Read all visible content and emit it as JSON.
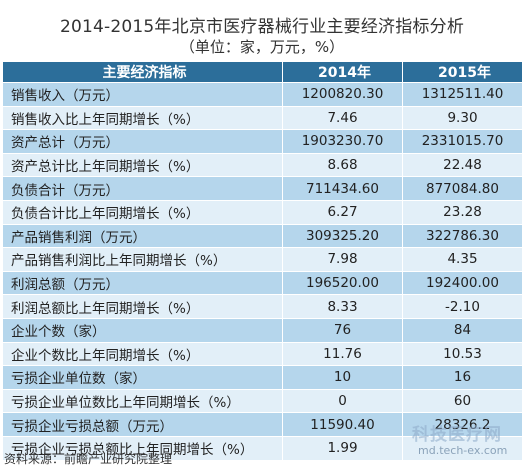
{
  "chart_data": {
    "type": "table",
    "title": "2014-2015年北京市医疗器械行业主要经济指标分析",
    "subtitle": "（单位：家，万元，%）",
    "columns": [
      "主要经济指标",
      "2014年",
      "2015年"
    ],
    "rows": [
      {
        "label": "销售收入（万元）",
        "y2014": "1200820.30",
        "y2015": "1312511.40"
      },
      {
        "label": "销售收入比上年同期增长（%）",
        "y2014": "7.46",
        "y2015": "9.30"
      },
      {
        "label": "资产总计（万元）",
        "y2014": "1903230.70",
        "y2015": "2331015.70"
      },
      {
        "label": "资产总计比上年同期增长（%）",
        "y2014": "8.68",
        "y2015": "22.48"
      },
      {
        "label": "负债合计（万元）",
        "y2014": "711434.60",
        "y2015": "877084.80"
      },
      {
        "label": "负债合计比上年同期增长（%）",
        "y2014": "6.27",
        "y2015": "23.28"
      },
      {
        "label": "产品销售利润（万元）",
        "y2014": "309325.20",
        "y2015": "322786.30"
      },
      {
        "label": "产品销售利润比上年同期增长（%）",
        "y2014": "7.98",
        "y2015": "4.35"
      },
      {
        "label": "利润总额（万元）",
        "y2014": "196520.00",
        "y2015": "192400.00"
      },
      {
        "label": "利润总额比上年同期增长（%）",
        "y2014": "8.33",
        "y2015": "-2.10"
      },
      {
        "label": "企业个数（家）",
        "y2014": "76",
        "y2015": "84"
      },
      {
        "label": "企业个数比上年同期增长（%）",
        "y2014": "11.76",
        "y2015": "10.53"
      },
      {
        "label": "亏损企业单位数（家）",
        "y2014": "10",
        "y2015": "16"
      },
      {
        "label": "亏损企业单位数比上年同期增长（%）",
        "y2014": "0",
        "y2015": "60"
      },
      {
        "label": "亏损企业亏损总额（万元）",
        "y2014": "11590.40",
        "y2015": "28326.2"
      },
      {
        "label": "亏损企业亏损总额比上年同期增长（%）",
        "y2014": "1.99",
        "y2015": ""
      }
    ]
  },
  "source": "资料来源：前瞻产业研究院整理",
  "watermark": {
    "brand": "科技医疗网",
    "url": "md.tech-ex.com"
  },
  "colors": {
    "header_bg": "#2c6e9a",
    "row_dark": "#b5d6ec",
    "row_light": "#e2eff8"
  }
}
